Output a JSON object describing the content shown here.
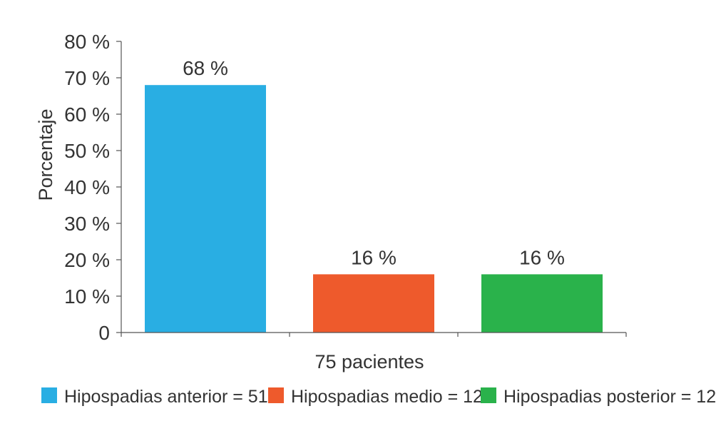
{
  "chart_data": {
    "type": "bar",
    "categories": [
      "Hipospadias anterior",
      "Hipospadias medio",
      "Hipospadias posterior"
    ],
    "values": [
      68,
      16,
      16
    ],
    "value_labels": [
      "68 %",
      "16 %",
      "16 %"
    ],
    "colors": [
      "#29aee3",
      "#ee5a2c",
      "#2ab24b"
    ],
    "xlabel": "75 pacientes",
    "ylabel": "Porcentaje",
    "ylim": [
      0,
      80
    ],
    "yticks": [
      0,
      10,
      20,
      30,
      40,
      50,
      60,
      70,
      80
    ],
    "ytick_labels": [
      "0",
      "10 %",
      "20 %",
      "30 %",
      "40 %",
      "50 %",
      "60 %",
      "70 %",
      "80 %"
    ],
    "grid": false,
    "legend": {
      "placement": "bottom",
      "entries": [
        "Hipospadias anterior = 51",
        "Hipospadias medio = 12",
        "Hipospadias posterior = 12"
      ]
    }
  }
}
